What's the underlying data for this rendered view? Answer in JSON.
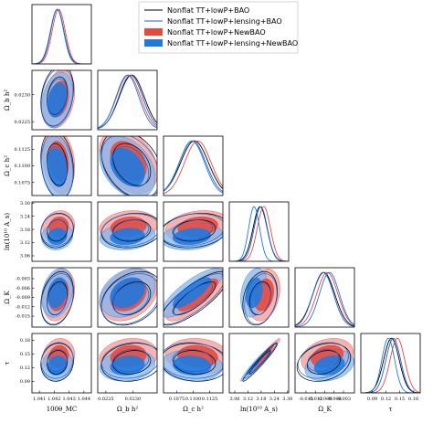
{
  "chart_data": {
    "type": "triangle-plot",
    "parameters": [
      {
        "key": "theta",
        "label": "100θ_MC",
        "range": [
          1.0405,
          1.0445
        ],
        "ticks": [
          "1.041",
          "1.042",
          "1.043",
          "1.044"
        ]
      },
      {
        "key": "ombh2",
        "label": "Ω_b h²",
        "range": [
          0.02235,
          0.02345
        ],
        "ticks": [
          "0.0225",
          "0.0230",
          "0.0235"
        ]
      },
      {
        "key": "omch2",
        "label": "Ω_c h²",
        "range": [
          0.1055,
          0.1145
        ],
        "ticks": [
          "0.1075",
          "0.1100",
          "0.1125"
        ]
      },
      {
        "key": "logA",
        "label": "ln(10¹⁰ A_s)",
        "range": [
          3.035,
          3.305
        ],
        "ticks": [
          "3.06",
          "3.12",
          "3.18",
          "3.24",
          "3.30"
        ]
      },
      {
        "key": "omk",
        "label": "Ω_K",
        "range": [
          -0.0185,
          0.0005
        ],
        "ticks": [
          "-0.015",
          "-0.012",
          "-0.009",
          "-0.006",
          "-0.003"
        ]
      },
      {
        "key": "tau",
        "label": "τ",
        "range": [
          0.065,
          0.195
        ],
        "ticks": [
          "0.09",
          "0.12",
          "0.15",
          "0.18"
        ]
      }
    ],
    "series": [
      {
        "name": "Nonflat TT+lowP+BAO",
        "style": "line",
        "color": "#000000",
        "mean": [
          1.0422,
          0.02298,
          0.1102,
          3.175,
          -0.0093,
          0.132
        ],
        "sigma": [
          0.00045,
          0.00023,
          0.0021,
          0.032,
          0.0035,
          0.017
        ]
      },
      {
        "name": "Nonflat TT+lowP+lensing+BAO",
        "style": "line",
        "color": "#1f5fd6",
        "mean": [
          1.0422,
          0.02296,
          0.1099,
          3.178,
          -0.0095,
          0.136
        ],
        "sigma": [
          0.00044,
          0.00022,
          0.002,
          0.03,
          0.0033,
          0.016
        ]
      },
      {
        "name": "Nonflat TT+lowP+NewBAO",
        "style": "filled",
        "color": "#e64a3f",
        "mean": [
          1.0423,
          0.02292,
          0.1107,
          3.192,
          -0.0082,
          0.145
        ],
        "sigma": [
          0.00044,
          0.00022,
          0.002,
          0.03,
          0.0034,
          0.016
        ]
      },
      {
        "name": "Nonflat TT+lowP+lensing+NewBAO",
        "style": "filled",
        "color": "#1f7ae0",
        "mean": [
          1.0422,
          0.0229,
          0.1098,
          3.148,
          -0.0075,
          0.125
        ],
        "sigma": [
          0.00043,
          0.00021,
          0.0019,
          0.025,
          0.0032,
          0.014
        ]
      }
    ],
    "correlations": {
      "1-0": 0.25,
      "2-0": -0.2,
      "2-1": -0.35,
      "3-0": 0.1,
      "3-1": 0.15,
      "3-2": 0.2,
      "4-0": 0.25,
      "4-1": 0.3,
      "4-2": 0.8,
      "4-3": 0.25,
      "5-0": 0.1,
      "5-1": 0.15,
      "5-2": -0.1,
      "5-3": 0.97,
      "5-4": 0.25
    },
    "legend_position": "top-right"
  }
}
